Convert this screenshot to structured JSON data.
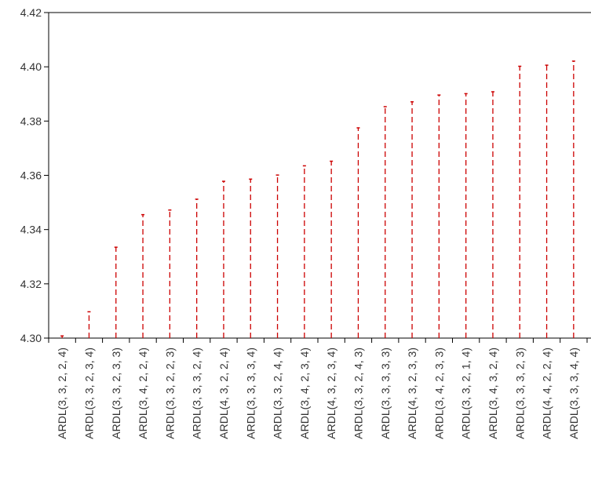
{
  "chart_data": {
    "type": "dropline",
    "title": "",
    "xlabel": "",
    "ylabel": "",
    "ylim": [
      4.3,
      4.42
    ],
    "yticks": [
      4.3,
      4.32,
      4.34,
      4.36,
      4.38,
      4.4,
      4.42
    ],
    "ytick_labels": [
      "4.30",
      "4.32",
      "4.34",
      "4.36",
      "4.38",
      "4.40",
      "4.42"
    ],
    "grid": false,
    "line_style": "dashed",
    "colors": {
      "series": "#cc0000",
      "axis": "#000000",
      "text": "#333333"
    },
    "categories": [
      "ARDL(3, 3, 2, 2, 4)",
      "ARDL(3, 3, 2, 3, 4)",
      "ARDL(3, 3, 2, 3, 3)",
      "ARDL(3, 4, 2, 2, 4)",
      "ARDL(3, 3, 2, 2, 3)",
      "ARDL(3, 3, 3, 2, 4)",
      "ARDL(4, 3, 2, 2, 4)",
      "ARDL(3, 3, 3, 3, 4)",
      "ARDL(3, 3, 2, 4, 4)",
      "ARDL(3, 4, 2, 3, 4)",
      "ARDL(4, 3, 2, 3, 4)",
      "ARDL(3, 3, 2, 4, 3)",
      "ARDL(3, 3, 3, 3, 3)",
      "ARDL(4, 3, 2, 3, 3)",
      "ARDL(3, 4, 2, 3, 3)",
      "ARDL(3, 3, 2, 1, 4)",
      "ARDL(3, 4, 3, 2, 4)",
      "ARDL(3, 3, 3, 2, 3)",
      "ARDL(4, 4, 2, 2, 4)",
      "ARDL(3, 3, 3, 4, 4)"
    ],
    "values": [
      4.3008,
      4.3097,
      4.3335,
      4.3455,
      4.3472,
      4.3512,
      4.3578,
      4.3586,
      4.3601,
      4.3635,
      4.3652,
      4.3775,
      4.3853,
      4.3871,
      4.3896,
      4.3901,
      4.3908,
      4.4002,
      4.4006,
      4.4021
    ]
  }
}
